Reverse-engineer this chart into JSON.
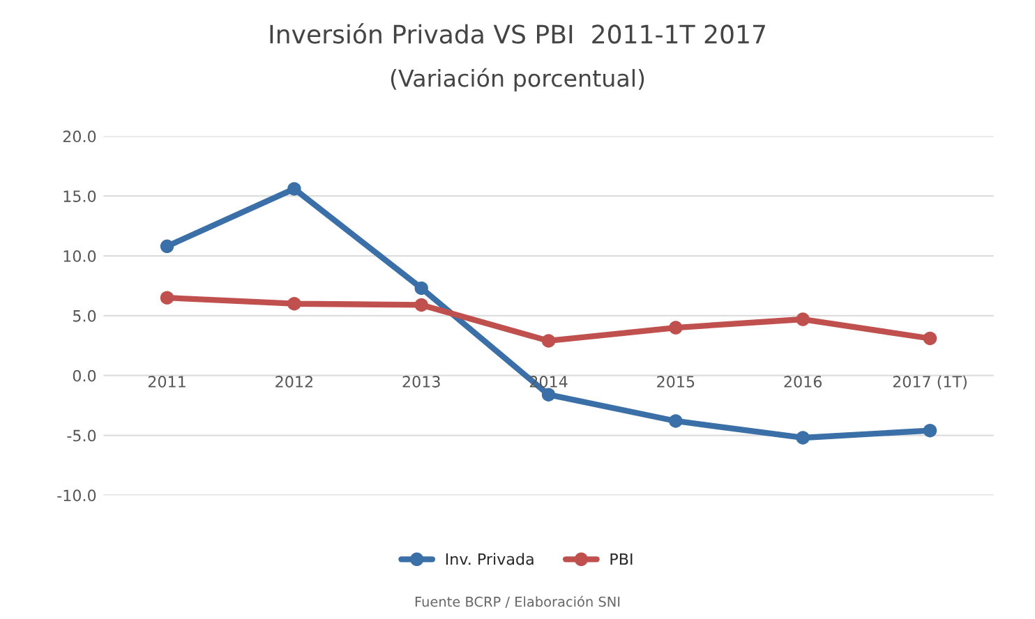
{
  "chart_data": {
    "type": "line",
    "title": "Inversión Privada VS PBI  2011-1T 2017",
    "subtitle": "(Variación porcentual)",
    "categories": [
      "2011",
      "2012",
      "2013",
      "2014",
      "2015",
      "2016",
      "2017 (1T)"
    ],
    "series": [
      {
        "name": "Inv. Privada",
        "color": "#3b6fa8",
        "values": [
          10.8,
          15.6,
          7.3,
          -1.6,
          -3.8,
          -5.2,
          -4.6
        ]
      },
      {
        "name": "PBI",
        "color": "#c0504d",
        "values": [
          6.5,
          6.0,
          5.9,
          2.9,
          4.0,
          4.7,
          3.1
        ]
      }
    ],
    "ylim": [
      -10,
      20
    ],
    "yticks": [
      {
        "value": -10,
        "label": "-10.0"
      },
      {
        "value": -5,
        "label": "-5.0"
      },
      {
        "value": 0,
        "label": "0.0"
      },
      {
        "value": 5,
        "label": "5.0"
      },
      {
        "value": 10,
        "label": "10.0"
      },
      {
        "value": 15,
        "label": "15.0"
      },
      {
        "value": 20,
        "label": "20.0"
      }
    ],
    "grid": "y",
    "legend": "bottom",
    "marker": "circle",
    "line_style": "solid",
    "annotations": [
      "Fuente BCRP / Elaboración SNI"
    ]
  }
}
